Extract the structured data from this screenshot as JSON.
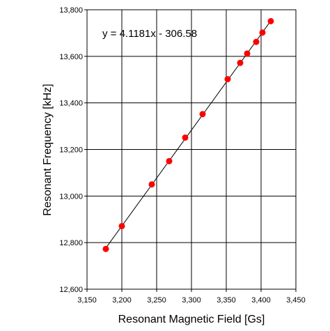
{
  "chart_data": {
    "type": "scatter",
    "xlabel": "Resonant Magnetic Field [Gs]",
    "ylabel": "Resonant Frequency [kHz]",
    "xlim": [
      3150,
      3450
    ],
    "ylim": [
      12600,
      13800
    ],
    "xticks": [
      3150,
      3200,
      3250,
      3300,
      3350,
      3400,
      3450
    ],
    "yticks": [
      12600,
      12800,
      13000,
      13200,
      13400,
      13600,
      13800
    ],
    "xtick_labels": [
      "3,150",
      "3,200",
      "3,250",
      "3,300",
      "3,350",
      "3,400",
      "3,450"
    ],
    "ytick_labels": [
      "12,600",
      "12,800",
      "13,000",
      "13,200",
      "13,400",
      "13,600",
      "13,800"
    ],
    "grid": true,
    "series": [
      {
        "marker": "circle",
        "color": "#ff0000",
        "points": [
          {
            "x": 3177,
            "y": 12773
          },
          {
            "x": 3200,
            "y": 12871
          },
          {
            "x": 3243,
            "y": 13050
          },
          {
            "x": 3268,
            "y": 13150
          },
          {
            "x": 3291,
            "y": 13251
          },
          {
            "x": 3316,
            "y": 13352
          },
          {
            "x": 3352,
            "y": 13502
          },
          {
            "x": 3370,
            "y": 13572
          },
          {
            "x": 3380,
            "y": 13612
          },
          {
            "x": 3393,
            "y": 13662
          },
          {
            "x": 3402,
            "y": 13702
          },
          {
            "x": 3414,
            "y": 13751
          }
        ]
      }
    ],
    "trendline": {
      "slope": 4.1181,
      "intercept": -306.58,
      "x_range": [
        3177,
        3414
      ],
      "color": "#000000",
      "label": "y = 4.1181x - 306.58"
    }
  }
}
